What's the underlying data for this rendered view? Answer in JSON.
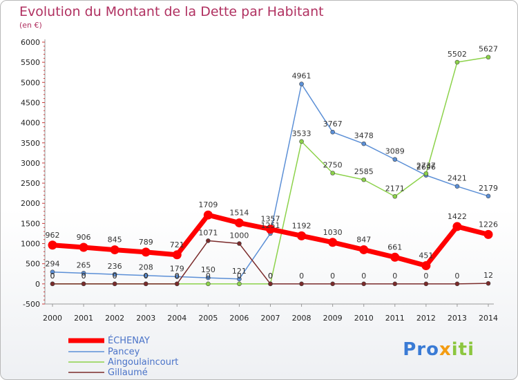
{
  "header": {
    "title": "Evolution du Montant de la Dette par Habitant",
    "subtitle": "(en €)"
  },
  "logo": {
    "text": "Proxiti"
  },
  "chart_data": {
    "type": "line",
    "title": "Evolution du Montant de la Dette par Habitant",
    "subtitle": "(en €)",
    "xlabel": "",
    "ylabel": "",
    "ylim": [
      -500,
      6000
    ],
    "yticks": [
      -500,
      0,
      500,
      1000,
      1500,
      2000,
      2500,
      3000,
      3500,
      4000,
      4500,
      5000,
      5500,
      6000
    ],
    "grid": false,
    "legend_position": "bottom-left",
    "x": [
      "2000",
      "2001",
      "2002",
      "2003",
      "2004",
      "2005",
      "2006",
      "2007",
      "2008",
      "2009",
      "2010",
      "2011",
      "2012",
      "2013",
      "2014"
    ],
    "series": [
      {
        "name": "ÉCHENAY",
        "color": "#ff0000",
        "values": [
          962,
          906,
          845,
          789,
          721,
          1709,
          1514,
          1357,
          1192,
          1030,
          847,
          661,
          451,
          1422,
          1226
        ],
        "labels": [
          "962",
          "906",
          "845",
          "789",
          "721",
          "1709",
          "1514",
          "1357",
          "1192",
          "1030",
          "847",
          "661",
          "451",
          "1422",
          "1226"
        ]
      },
      {
        "name": "Pancey",
        "color": "#5b8fd6",
        "values": [
          294,
          265,
          236,
          208,
          179,
          150,
          121,
          1251,
          4961,
          3767,
          3478,
          3089,
          2696,
          2421,
          2179
        ],
        "labels": [
          "294",
          "265",
          "236",
          "208",
          "179",
          "150",
          "121",
          "1251",
          "4961",
          "3767",
          "3478",
          "3089",
          "2696",
          "2421",
          "2179"
        ]
      },
      {
        "name": "Aingoulaincourt",
        "color": "#8cd24a",
        "values": [
          0,
          0,
          0,
          0,
          0,
          0,
          0,
          0,
          3533,
          2750,
          2585,
          2171,
          2737,
          5502,
          5627
        ],
        "labels": [
          "0",
          "0",
          "0",
          "0",
          "0",
          "0",
          "0",
          "0",
          "3533",
          "2750",
          "2585",
          "2171",
          "2737",
          "5502",
          "5627"
        ]
      },
      {
        "name": "Gillaumé",
        "color": "#7a2a2a",
        "values": [
          0,
          0,
          0,
          0,
          0,
          1071,
          1000,
          0,
          0,
          0,
          0,
          0,
          0,
          0,
          12
        ],
        "labels": [
          "0",
          "0",
          "0",
          "0",
          "0",
          "1071",
          "1000",
          "0",
          "0",
          "0",
          "0",
          "0",
          "0",
          "0",
          "12"
        ]
      }
    ]
  }
}
